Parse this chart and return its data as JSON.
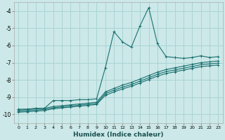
{
  "xlabel": "Humidex (Indice chaleur)",
  "bg_color": "#cce8e8",
  "grid_color": "#aad4d4",
  "line_color": "#1a7070",
  "xlim": [
    -0.5,
    23.5
  ],
  "ylim": [
    -10.5,
    -3.5
  ],
  "yticks": [
    -10,
    -9,
    -8,
    -7,
    -6,
    -5,
    -4
  ],
  "xticks": [
    0,
    1,
    2,
    3,
    4,
    5,
    6,
    7,
    8,
    9,
    10,
    11,
    12,
    13,
    14,
    15,
    16,
    17,
    18,
    19,
    20,
    21,
    22,
    23
  ],
  "lines": [
    {
      "x": [
        0,
        1,
        2,
        3,
        4,
        5,
        6,
        7,
        8,
        9,
        10,
        11,
        12,
        13,
        14,
        15,
        16,
        17,
        18,
        19,
        20,
        21,
        22,
        23
      ],
      "y": [
        -9.7,
        -9.7,
        -9.65,
        -9.65,
        -9.2,
        -9.2,
        -9.2,
        -9.15,
        -9.15,
        -9.1,
        -7.3,
        -5.2,
        -5.8,
        -6.1,
        -4.85,
        -3.8,
        -5.9,
        -6.65,
        -6.7,
        -6.75,
        -6.7,
        -6.6,
        -6.7,
        -6.65
      ]
    },
    {
      "x": [
        0,
        1,
        2,
        3,
        4,
        5,
        6,
        7,
        8,
        9,
        10,
        11,
        12,
        13,
        14,
        15,
        16,
        17,
        18,
        19,
        20,
        21,
        22,
        23
      ],
      "y": [
        -9.75,
        -9.72,
        -9.68,
        -9.65,
        -9.55,
        -9.5,
        -9.45,
        -9.4,
        -9.35,
        -9.3,
        -8.7,
        -8.5,
        -8.3,
        -8.15,
        -7.95,
        -7.75,
        -7.55,
        -7.4,
        -7.3,
        -7.2,
        -7.1,
        -7.0,
        -6.95,
        -6.9
      ]
    },
    {
      "x": [
        0,
        1,
        2,
        3,
        4,
        5,
        6,
        7,
        8,
        9,
        10,
        11,
        12,
        13,
        14,
        15,
        16,
        17,
        18,
        19,
        20,
        21,
        22,
        23
      ],
      "y": [
        -9.82,
        -9.78,
        -9.75,
        -9.72,
        -9.62,
        -9.57,
        -9.52,
        -9.47,
        -9.42,
        -9.37,
        -8.8,
        -8.6,
        -8.42,
        -8.27,
        -8.07,
        -7.88,
        -7.67,
        -7.52,
        -7.42,
        -7.32,
        -7.22,
        -7.12,
        -7.07,
        -7.02
      ]
    },
    {
      "x": [
        0,
        1,
        2,
        3,
        4,
        5,
        6,
        7,
        8,
        9,
        10,
        11,
        12,
        13,
        14,
        15,
        16,
        17,
        18,
        19,
        20,
        21,
        22,
        23
      ],
      "y": [
        -9.88,
        -9.85,
        -9.82,
        -9.78,
        -9.68,
        -9.63,
        -9.58,
        -9.53,
        -9.48,
        -9.43,
        -8.9,
        -8.7,
        -8.52,
        -8.37,
        -8.18,
        -7.98,
        -7.78,
        -7.63,
        -7.53,
        -7.43,
        -7.33,
        -7.23,
        -7.18,
        -7.13
      ]
    }
  ]
}
